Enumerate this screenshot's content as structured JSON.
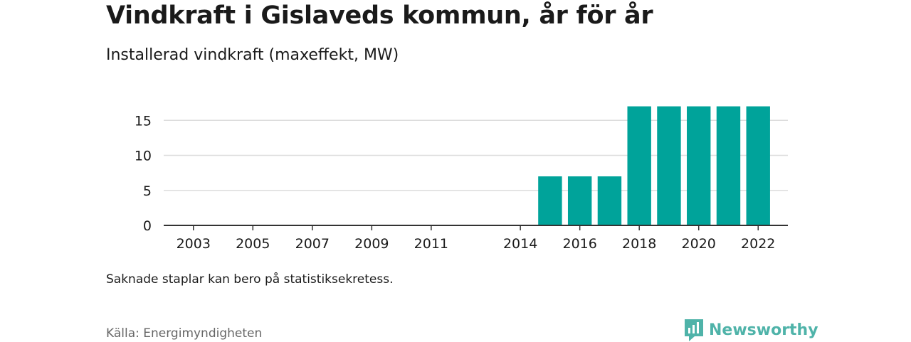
{
  "header": {
    "title": "Vindkraft i Gislaveds kommun, år för år",
    "subtitle": "Installerad vindkraft (maxeffekt, MW)"
  },
  "footer": {
    "note": "Saknade staplar kan bero på statistiksekretess.",
    "source": "Källa: Energimyndigheten",
    "brand": "Newsworthy"
  },
  "colors": {
    "bar": "#00a39a",
    "grid": "#dddddd",
    "axis": "#333333",
    "text": "#1a1a1a",
    "brand": "#4fb3a9"
  },
  "chart_data": {
    "type": "bar",
    "x": [
      2015,
      2016,
      2017,
      2018,
      2019,
      2020,
      2021,
      2022
    ],
    "values": [
      7,
      7,
      7,
      17,
      17,
      17,
      17,
      17
    ],
    "xlim": [
      2002,
      2023
    ],
    "ylim": [
      0,
      20
    ],
    "yticks": [
      0,
      5,
      10,
      15
    ],
    "xticks": [
      "2003",
      "2005",
      "2007",
      "2009",
      "2011",
      "2014",
      "2016",
      "2018",
      "2020",
      "2022"
    ],
    "grid": true,
    "legend": "none"
  }
}
